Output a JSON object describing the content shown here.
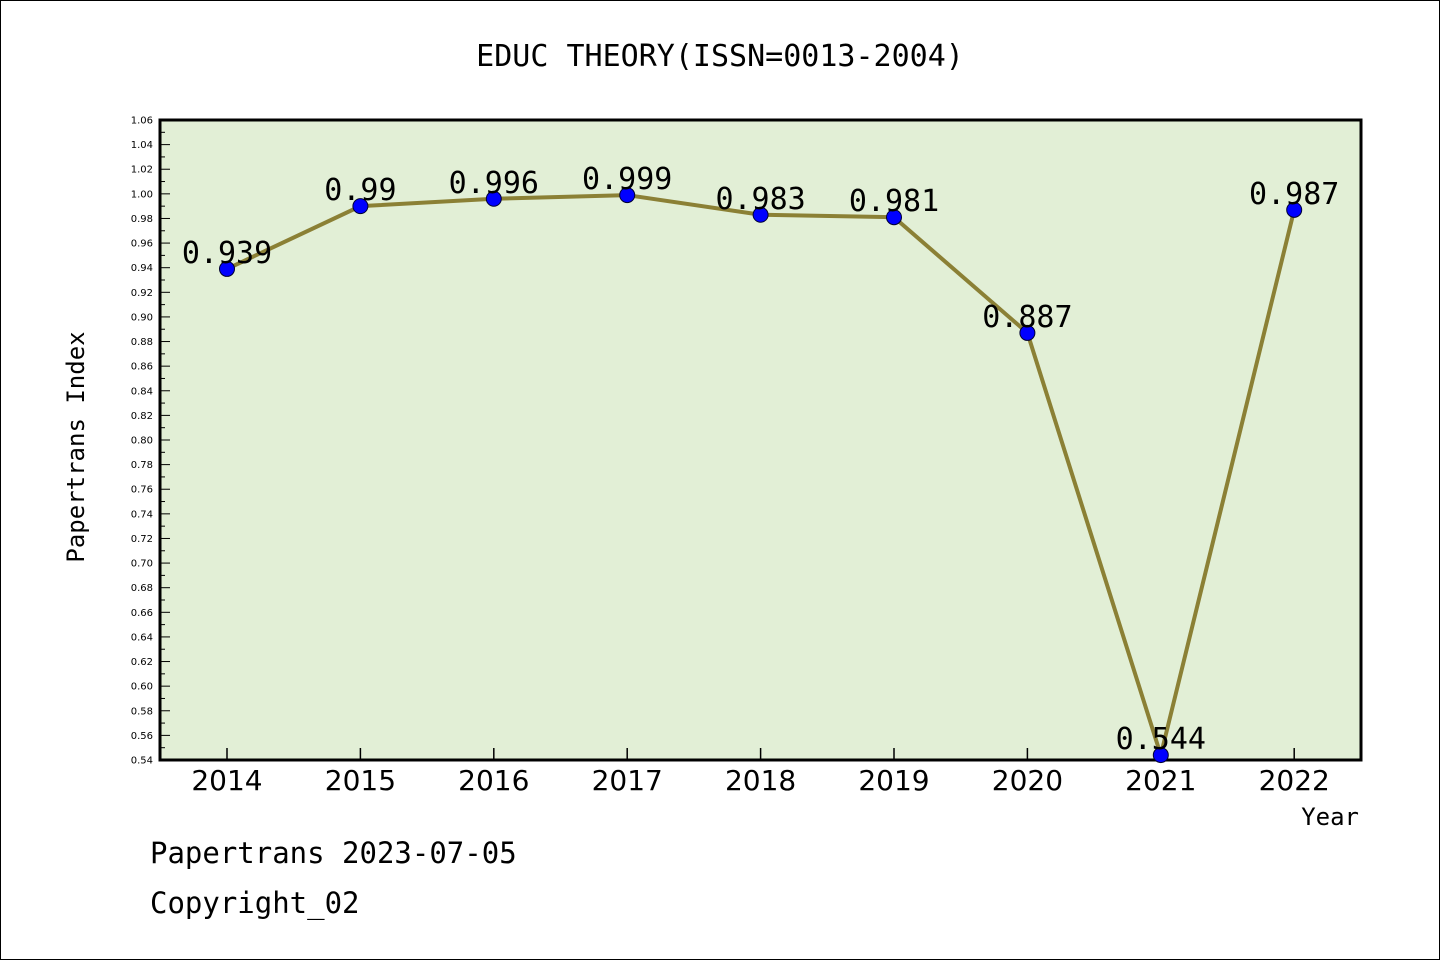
{
  "chart_data": {
    "type": "line",
    "title": "EDUC THEORY(ISSN=0013-2004)",
    "xlabel": "Year",
    "ylabel": "Papertrans Index",
    "categories": [
      "2014",
      "2015",
      "2016",
      "2017",
      "2018",
      "2019",
      "2020",
      "2021",
      "2022"
    ],
    "values": [
      0.939,
      0.99,
      0.996,
      0.999,
      0.983,
      0.981,
      0.887,
      0.544,
      0.987
    ],
    "data_labels": [
      "0.939",
      "0.99",
      "0.996",
      "0.999",
      "0.983",
      "0.981",
      "0.887",
      "0.544",
      "0.987"
    ],
    "ylim": [
      0.54,
      1.06
    ],
    "ytick_step": 0.02,
    "yticks": [
      "0.54",
      "0.56",
      "0.58",
      "0.60",
      "0.62",
      "0.64",
      "0.66",
      "0.68",
      "0.70",
      "0.72",
      "0.74",
      "0.76",
      "0.78",
      "0.80",
      "0.82",
      "0.84",
      "0.86",
      "0.88",
      "0.90",
      "0.92",
      "0.94",
      "0.96",
      "0.98",
      "1.00",
      "1.02",
      "1.04",
      "1.06"
    ],
    "grid": false,
    "colors": {
      "plot_background": "#e2efd6",
      "line": "#8b8035",
      "marker": "#0000ff"
    }
  },
  "footer": {
    "line1": "Papertrans 2023-07-05",
    "line2": "Copyright_02"
  }
}
